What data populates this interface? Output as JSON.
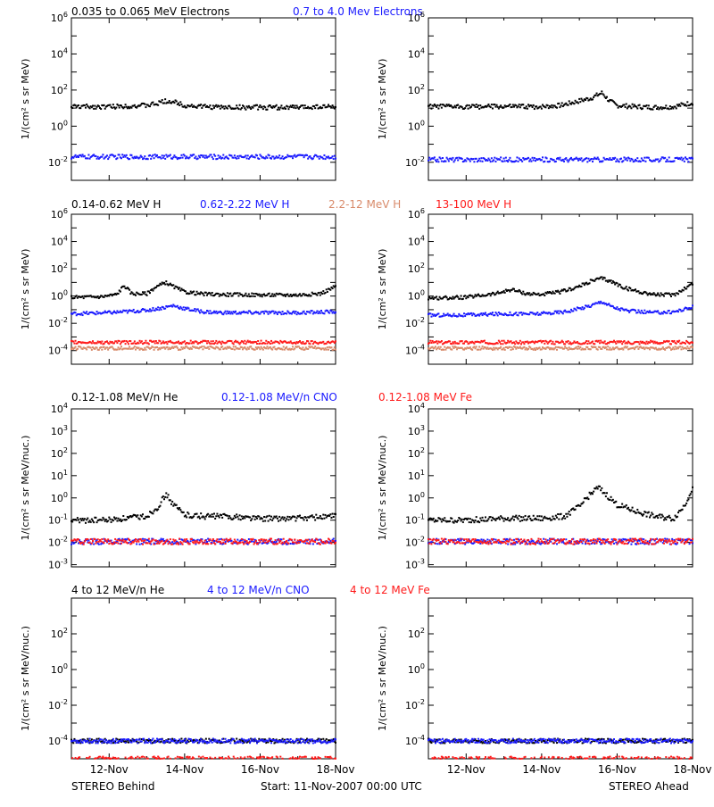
{
  "chart_data": [
    {
      "type": "scatter",
      "panel": "electrons-behind",
      "ylabel": "1/(cm² s sr MeV)",
      "yscale": "log",
      "ylim": [
        0.001,
        1000000
      ],
      "ytick_labels": [
        "10^-2",
        "10^0",
        "10^2",
        "10^4",
        "10^6"
      ],
      "x_ticks": [
        "12-Nov",
        "14-Nov",
        "16-Nov",
        "18-Nov"
      ],
      "xlim_days": [
        "11-Nov-2007",
        "18-Nov-2007"
      ],
      "legend": [
        {
          "label": "0.035 to 0.065 MeV Electrons",
          "color": "#000000"
        },
        {
          "label": "0.7 to 4.0 Mev Electrons",
          "color": "#1a1aff"
        }
      ],
      "series": [
        {
          "name": "0.035 to 0.065 MeV Electrons",
          "color": "#000000",
          "x": [
            11.0,
            12.0,
            13.0,
            13.3,
            13.5,
            13.8,
            14.0,
            14.5,
            15.0,
            16.0,
            17.0,
            17.5,
            18.0
          ],
          "y": [
            12,
            12,
            14,
            18,
            25,
            20,
            14,
            12,
            11,
            11,
            11,
            12,
            12
          ]
        },
        {
          "name": "0.7 to 4.0 Mev Electrons",
          "color": "#1a1aff",
          "x": [
            11.0,
            12.0,
            13.0,
            14.0,
            15.0,
            16.0,
            17.0,
            18.0
          ],
          "y": [
            0.02,
            0.02,
            0.02,
            0.02,
            0.02,
            0.02,
            0.02,
            0.02
          ]
        }
      ]
    },
    {
      "type": "scatter",
      "panel": "electrons-ahead",
      "ylabel": "1/(cm² s sr MeV)",
      "yscale": "log",
      "ylim": [
        0.001,
        1000000
      ],
      "ytick_labels": [
        "10^-2",
        "10^0",
        "10^2",
        "10^4",
        "10^6"
      ],
      "x_ticks": [
        "12-Nov",
        "14-Nov",
        "16-Nov",
        "18-Nov"
      ],
      "series": [
        {
          "name": "0.035 to 0.065 MeV Electrons",
          "color": "#000000",
          "x": [
            11.0,
            12.0,
            13.0,
            14.0,
            14.5,
            15.0,
            15.3,
            15.6,
            15.8,
            16.0,
            16.5,
            17.0,
            17.5,
            18.0
          ],
          "y": [
            12,
            12,
            12,
            12,
            14,
            25,
            35,
            70,
            25,
            14,
            12,
            11,
            12,
            20
          ]
        },
        {
          "name": "0.7 to 4.0 Mev Electrons",
          "color": "#1a1aff",
          "x": [
            11.0,
            12.0,
            13.0,
            14.0,
            15.0,
            16.0,
            17.0,
            18.0
          ],
          "y": [
            0.014,
            0.014,
            0.014,
            0.014,
            0.014,
            0.014,
            0.014,
            0.014
          ]
        }
      ]
    },
    {
      "type": "scatter",
      "panel": "protons-behind",
      "ylabel": "1/(cm² s sr MeV)",
      "yscale": "log",
      "ylim": [
        1e-05,
        1000000
      ],
      "ytick_labels": [
        "10^-4",
        "10^-2",
        "10^0",
        "10^2",
        "10^4",
        "10^6"
      ],
      "x_ticks": [
        "12-Nov",
        "14-Nov",
        "16-Nov",
        "18-Nov"
      ],
      "legend": [
        {
          "label": "0.14-0.62 MeV H",
          "color": "#000000"
        },
        {
          "label": "0.62-2.22 MeV H",
          "color": "#1a1aff"
        },
        {
          "label": "2.2-12 MeV H",
          "color": "#d88a6a"
        },
        {
          "label": "13-100 MeV H",
          "color": "#ff1a1a"
        }
      ],
      "series": [
        {
          "name": "0.14-0.62 MeV H",
          "color": "#000000",
          "x": [
            11.0,
            11.8,
            12.2,
            12.4,
            12.6,
            13.0,
            13.2,
            13.5,
            13.7,
            14.0,
            14.5,
            15.0,
            16.0,
            17.0,
            17.6,
            18.0
          ],
          "y": [
            0.8,
            0.9,
            1.3,
            6,
            1.5,
            1.5,
            4,
            10,
            5,
            2,
            1.4,
            1.3,
            1.2,
            1.2,
            1.5,
            5
          ]
        },
        {
          "name": "0.62-2.22 MeV H",
          "color": "#1a1aff",
          "x": [
            11.0,
            12.0,
            13.0,
            13.5,
            13.7,
            14.0,
            14.5,
            15.0,
            16.0,
            17.0,
            18.0
          ],
          "y": [
            0.05,
            0.06,
            0.09,
            0.15,
            0.2,
            0.12,
            0.07,
            0.06,
            0.06,
            0.06,
            0.07
          ]
        },
        {
          "name": "2.2-12 MeV H",
          "color": "#d88a6a",
          "x": [
            11.0,
            12.0,
            13.0,
            14.0,
            15.0,
            16.0,
            17.0,
            18.0
          ],
          "y": [
            0.00015,
            0.00015,
            0.00015,
            0.00015,
            0.00015,
            0.00015,
            0.00015,
            0.00015
          ]
        },
        {
          "name": "13-100 MeV H",
          "color": "#ff1a1a",
          "x": [
            11.0,
            12.0,
            13.0,
            14.0,
            15.0,
            16.0,
            17.0,
            18.0
          ],
          "y": [
            0.0004,
            0.0004,
            0.0004,
            0.0004,
            0.0004,
            0.0004,
            0.0004,
            0.0004
          ]
        }
      ]
    },
    {
      "type": "scatter",
      "panel": "protons-ahead",
      "ylabel": "1/(cm² s sr MeV)",
      "yscale": "log",
      "ylim": [
        1e-05,
        1000000
      ],
      "ytick_labels": [
        "10^-4",
        "10^-2",
        "10^0",
        "10^2",
        "10^4",
        "10^6"
      ],
      "x_ticks": [
        "12-Nov",
        "14-Nov",
        "16-Nov",
        "18-Nov"
      ],
      "series": [
        {
          "name": "0.14-0.62 MeV H",
          "color": "#000000",
          "x": [
            11.0,
            12.0,
            12.8,
            13.2,
            13.6,
            14.0,
            14.5,
            15.0,
            15.3,
            15.6,
            15.9,
            16.2,
            16.6,
            17.0,
            17.5,
            18.0
          ],
          "y": [
            0.7,
            0.8,
            1.5,
            3,
            1.5,
            1.3,
            2,
            5,
            12,
            20,
            10,
            4,
            2,
            1.3,
            1.2,
            8
          ]
        },
        {
          "name": "0.62-2.22 MeV H",
          "color": "#1a1aff",
          "x": [
            11.0,
            12.0,
            13.0,
            14.0,
            14.6,
            15.0,
            15.3,
            15.6,
            15.9,
            16.3,
            17.0,
            17.5,
            18.0
          ],
          "y": [
            0.04,
            0.04,
            0.05,
            0.05,
            0.07,
            0.12,
            0.2,
            0.4,
            0.15,
            0.08,
            0.06,
            0.07,
            0.15
          ]
        },
        {
          "name": "2.2-12 MeV H",
          "color": "#d88a6a",
          "x": [
            11.0,
            12.0,
            13.0,
            14.0,
            15.0,
            16.0,
            17.0,
            18.0
          ],
          "y": [
            0.00015,
            0.00015,
            0.00015,
            0.00015,
            0.00015,
            0.00015,
            0.00015,
            0.00015
          ]
        },
        {
          "name": "13-100 MeV H",
          "color": "#ff1a1a",
          "x": [
            11.0,
            12.0,
            13.0,
            14.0,
            15.0,
            16.0,
            17.0,
            18.0
          ],
          "y": [
            0.0004,
            0.0004,
            0.0004,
            0.0004,
            0.0004,
            0.0004,
            0.0004,
            0.0004
          ]
        }
      ]
    },
    {
      "type": "scatter",
      "panel": "lowheavy-behind",
      "ylabel": "1/(cm² s sr MeV/nuc.)",
      "yscale": "log",
      "ylim": [
        0.0008,
        10000
      ],
      "ytick_labels": [
        "10^-3",
        "10^-2",
        "10^-1",
        "10^0",
        "10^1",
        "10^2",
        "10^3",
        "10^4"
      ],
      "x_ticks": [
        "12-Nov",
        "14-Nov",
        "16-Nov",
        "18-Nov"
      ],
      "legend": [
        {
          "label": "0.12-1.08 MeV/n He",
          "color": "#000000"
        },
        {
          "label": "0.12-1.08 MeV/n CNO",
          "color": "#1a1aff"
        },
        {
          "label": "0.12-1.08 MeV Fe",
          "color": "#ff1a1a"
        }
      ],
      "series": [
        {
          "name": "0.12-1.08 MeV/n He",
          "color": "#000000",
          "x": [
            11.0,
            12.0,
            13.0,
            13.3,
            13.5,
            13.7,
            14.0,
            14.5,
            15.0,
            16.0,
            17.0,
            18.0
          ],
          "y": [
            0.1,
            0.1,
            0.15,
            0.4,
            1.5,
            0.5,
            0.18,
            0.15,
            0.15,
            0.12,
            0.12,
            0.15
          ]
        },
        {
          "name": "0.12-1.08 MeV/n CNO",
          "color": "#1a1aff",
          "x": [
            11.0,
            12.0,
            13.0,
            14.0,
            15.0,
            16.0,
            17.0,
            18.0
          ],
          "y": [
            0.011,
            0.011,
            0.011,
            0.011,
            0.011,
            0.011,
            0.011,
            0.011
          ]
        },
        {
          "name": "0.12-1.08 MeV Fe",
          "color": "#ff1a1a",
          "x": [
            11.0,
            12.0,
            13.0,
            14.0,
            15.0,
            16.0,
            17.0,
            18.0
          ],
          "y": [
            0.011,
            0.011,
            0.011,
            0.011,
            0.011,
            0.011,
            0.011,
            0.011
          ]
        }
      ]
    },
    {
      "type": "scatter",
      "panel": "lowheavy-ahead",
      "ylabel": "1/(cm² s sr MeV/nuc.)",
      "yscale": "log",
      "ylim": [
        0.0008,
        10000
      ],
      "ytick_labels": [
        "10^-3",
        "10^-2",
        "10^-1",
        "10^0",
        "10^1",
        "10^2",
        "10^3",
        "10^4"
      ],
      "x_ticks": [
        "12-Nov",
        "14-Nov",
        "16-Nov",
        "18-Nov"
      ],
      "series": [
        {
          "name": "0.12-1.08 MeV/n He",
          "color": "#000000",
          "x": [
            11.0,
            12.0,
            13.0,
            14.0,
            14.6,
            15.0,
            15.3,
            15.5,
            15.7,
            16.0,
            16.5,
            17.0,
            17.5,
            17.8,
            18.0
          ],
          "y": [
            0.1,
            0.1,
            0.12,
            0.12,
            0.15,
            0.4,
            1.5,
            3,
            1.5,
            0.5,
            0.25,
            0.15,
            0.12,
            0.5,
            3
          ]
        },
        {
          "name": "0.12-1.08 MeV/n CNO",
          "color": "#1a1aff",
          "x": [
            11.0,
            12.0,
            13.0,
            14.0,
            15.0,
            16.0,
            17.0,
            18.0
          ],
          "y": [
            0.011,
            0.011,
            0.011,
            0.011,
            0.011,
            0.011,
            0.011,
            0.011
          ]
        },
        {
          "name": "0.12-1.08 MeV Fe",
          "color": "#ff1a1a",
          "x": [
            11.0,
            12.0,
            13.0,
            14.0,
            15.0,
            16.0,
            17.0,
            18.0
          ],
          "y": [
            0.011,
            0.011,
            0.011,
            0.011,
            0.011,
            0.011,
            0.011,
            0.011
          ]
        }
      ]
    },
    {
      "type": "scatter",
      "panel": "highheavy-behind",
      "ylabel": "1/(cm² s sr MeV/nuc.)",
      "yscale": "log",
      "ylim": [
        1e-05,
        10000
      ],
      "ytick_labels": [
        "10^-4",
        "10^-2",
        "10^0",
        "10^2"
      ],
      "x_ticks": [
        "12-Nov",
        "14-Nov",
        "16-Nov",
        "18-Nov"
      ],
      "legend": [
        {
          "label": "4 to 12 MeV/n He",
          "color": "#000000"
        },
        {
          "label": "4 to 12 MeV/n CNO",
          "color": "#1a1aff"
        },
        {
          "label": "4 to 12 MeV Fe",
          "color": "#ff1a1a"
        }
      ],
      "series": [
        {
          "name": "4 to 12 MeV/n He",
          "color": "#000000",
          "x": [
            11.0,
            18.0
          ],
          "y": [
            0.0001,
            0.0001
          ]
        },
        {
          "name": "4 to 12 MeV/n CNO",
          "color": "#1a1aff",
          "x": [
            11.0,
            18.0
          ],
          "y": [
            0.0001,
            0.0001
          ]
        },
        {
          "name": "4 to 12 MeV Fe",
          "color": "#ff1a1a",
          "x": [
            11.0,
            18.0
          ],
          "y": [
            1e-05,
            1e-05
          ]
        }
      ]
    },
    {
      "type": "scatter",
      "panel": "highheavy-ahead",
      "ylabel": "1/(cm² s sr MeV/nuc.)",
      "yscale": "log",
      "ylim": [
        1e-05,
        10000
      ],
      "ytick_labels": [
        "10^-4",
        "10^-2",
        "10^0",
        "10^2"
      ],
      "x_ticks": [
        "12-Nov",
        "14-Nov",
        "16-Nov",
        "18-Nov"
      ],
      "series": [
        {
          "name": "4 to 12 MeV/n He",
          "color": "#000000",
          "x": [
            11.0,
            18.0
          ],
          "y": [
            0.0001,
            0.0001
          ]
        },
        {
          "name": "4 to 12 MeV/n CNO",
          "color": "#1a1aff",
          "x": [
            11.0,
            18.0
          ],
          "y": [
            0.0001,
            0.0001
          ]
        },
        {
          "name": "4 to 12 MeV Fe",
          "color": "#ff1a1a",
          "x": [
            11.0,
            18.0
          ],
          "y": [
            1e-05,
            1e-05
          ]
        }
      ]
    }
  ],
  "footer": {
    "left": "STEREO Behind",
    "center": "Start: 11-Nov-2007 00:00 UTC",
    "right": "STEREO Ahead"
  }
}
